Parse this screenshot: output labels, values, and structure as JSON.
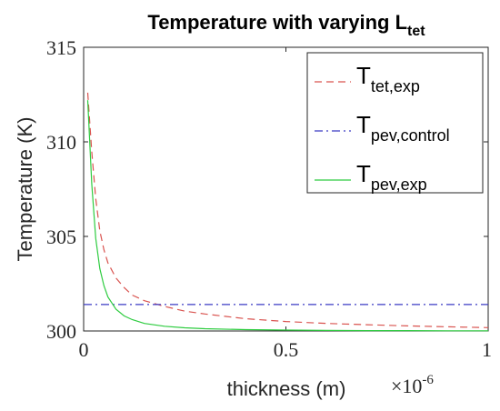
{
  "chart_data": {
    "type": "line",
    "title": "Temperature with varying L",
    "title_subscript": "tet",
    "xlabel": "thickness (m)",
    "ylabel": "Temperature (K)",
    "xlim": [
      0,
      1
    ],
    "ylim": [
      300,
      315
    ],
    "x_multiplier": "×10",
    "x_multiplier_exponent": "-6",
    "x_ticks": [
      0,
      0.5,
      1
    ],
    "x_tick_labels": [
      "0",
      "0.5",
      "1"
    ],
    "y_ticks": [
      300,
      305,
      310,
      315
    ],
    "y_tick_labels": [
      "300",
      "305",
      "310",
      "315"
    ],
    "grid": false,
    "legend_position": "top-right",
    "series": [
      {
        "name": "T",
        "name_subscript": "tet,exp",
        "color": "#d9534f",
        "dash": "dashed",
        "x": [
          0.01,
          0.02,
          0.03,
          0.04,
          0.05,
          0.06,
          0.08,
          0.1,
          0.12,
          0.15,
          0.2,
          0.25,
          0.3,
          0.4,
          0.5,
          0.6,
          0.7,
          0.8,
          0.9,
          1.0
        ],
        "y": [
          312.6,
          309.5,
          307.0,
          305.3,
          304.3,
          303.6,
          302.8,
          302.3,
          301.9,
          301.6,
          301.3,
          301.05,
          300.9,
          300.65,
          300.5,
          300.4,
          300.33,
          300.27,
          300.22,
          300.18
        ]
      },
      {
        "name": "T",
        "name_subscript": "pev,control",
        "color": "#3b3bc4",
        "dash": "dashdot",
        "x": [
          0.0,
          1.0
        ],
        "y": [
          301.4,
          301.4
        ]
      },
      {
        "name": "T",
        "name_subscript": "pev,exp",
        "color": "#2ecc40",
        "dash": "solid",
        "x": [
          0.01,
          0.02,
          0.03,
          0.04,
          0.05,
          0.06,
          0.08,
          0.1,
          0.12,
          0.15,
          0.2,
          0.25,
          0.3,
          0.4,
          0.5,
          0.6,
          0.7,
          0.8,
          0.9,
          1.0
        ],
        "y": [
          312.2,
          307.8,
          304.9,
          303.3,
          302.4,
          301.8,
          301.15,
          300.8,
          300.6,
          300.4,
          300.25,
          300.17,
          300.12,
          300.07,
          300.05,
          300.03,
          300.02,
          300.02,
          300.01,
          300.01
        ]
      }
    ]
  }
}
